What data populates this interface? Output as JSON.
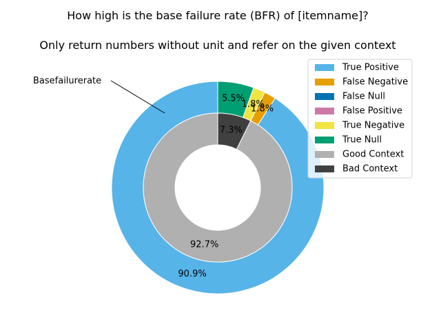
{
  "chart_data": {
    "type": "pie",
    "title": "How high is the base failure rate (BFR) of [itemname]?",
    "subtitle": "Only return numbers without unit and refer on the given context",
    "annotation": "Basefailurerate",
    "outer": {
      "slices": [
        {
          "label": "True Null",
          "value": 5.5,
          "color": "#009E73",
          "pct_label": "5.5%"
        },
        {
          "label": "True Negative",
          "value": 1.8,
          "color": "#F0E442",
          "pct_label": "1.8%"
        },
        {
          "label": "False Negative",
          "value": 1.8,
          "color": "#E69F00",
          "pct_label": "1.8%"
        },
        {
          "label": "True Positive",
          "value": 90.9,
          "color": "#56B4E9",
          "pct_label": "90.9%"
        }
      ]
    },
    "inner": {
      "slices": [
        {
          "label": "Bad Context",
          "value": 7.3,
          "color": "#404040",
          "pct_label": "7.3%"
        },
        {
          "label": "Good Context",
          "value": 92.7,
          "color": "#B0B0B0",
          "pct_label": "92.7%"
        }
      ]
    },
    "legend": {
      "placement": "top-right",
      "entries": [
        {
          "label": "True Positive",
          "color": "#56B4E9"
        },
        {
          "label": "False Negative",
          "color": "#E69F00"
        },
        {
          "label": "False Null",
          "color": "#0072B2"
        },
        {
          "label": "False Positive",
          "color": "#CC79A7"
        },
        {
          "label": "True Negative",
          "color": "#F0E442"
        },
        {
          "label": "True Null",
          "color": "#009E73"
        },
        {
          "label": "Good Context",
          "color": "#B0B0B0"
        },
        {
          "label": "Bad Context",
          "color": "#404040"
        }
      ]
    }
  }
}
